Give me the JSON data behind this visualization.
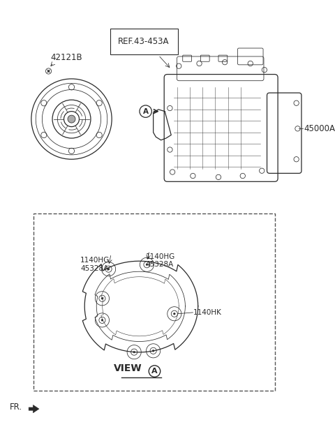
{
  "bg_color": "#ffffff",
  "line_color": "#2a2a2a",
  "label_42121B": "42121B",
  "label_ref": "REF.43-453A",
  "label_45000A": "45000A",
  "label_1140HG_45328A_left": "1140HG\n45328A",
  "label_1140HG_45328A_right": "1140HG\n45328A",
  "label_1140HK": "1140HK",
  "label_view": "VIEW",
  "label_A": "A",
  "label_FR": "FR.",
  "fs_main": 8.5,
  "fs_small": 7.5,
  "fs_bold": 9.5
}
